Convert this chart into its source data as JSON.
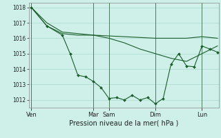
{
  "bg_color": "#cef0e8",
  "grid_color": "#aad8cc",
  "line_color": "#1a5c2a",
  "marker_color": "#1a5c2a",
  "xlabel": "Pression niveau de la mer( hPa )",
  "ylim": [
    1011.5,
    1018.3
  ],
  "yticks": [
    1012,
    1013,
    1014,
    1015,
    1016,
    1017,
    1018
  ],
  "day_labels": [
    "Ven",
    "Mar",
    "Sam",
    "Dim",
    "Lun"
  ],
  "day_positions": [
    0,
    96,
    120,
    192,
    264
  ],
  "xlim": [
    -4,
    290
  ],
  "series1_x": [
    0,
    24,
    48,
    72,
    96,
    120,
    144,
    168,
    192,
    216,
    240,
    264,
    288
  ],
  "series1_y": [
    1018.0,
    1016.8,
    1016.3,
    1016.2,
    1016.2,
    1016.15,
    1016.1,
    1016.05,
    1016.0,
    1016.0,
    1016.0,
    1016.1,
    1016.0
  ],
  "series2_x": [
    0,
    24,
    48,
    72,
    96,
    120,
    144,
    168,
    192,
    216,
    240,
    264,
    288
  ],
  "series2_y": [
    1018.0,
    1017.0,
    1016.4,
    1016.3,
    1016.2,
    1016.0,
    1015.7,
    1015.3,
    1015.0,
    1014.7,
    1014.5,
    1015.0,
    1015.5
  ],
  "series3_x": [
    0,
    24,
    48,
    60,
    72,
    84,
    96,
    108,
    120,
    132,
    144,
    156,
    168,
    180,
    192,
    204,
    216,
    228,
    240,
    252,
    264,
    276,
    288
  ],
  "series3_y": [
    1018.0,
    1016.8,
    1016.2,
    1015.0,
    1013.6,
    1013.5,
    1013.2,
    1012.8,
    1012.1,
    1012.15,
    1012.0,
    1012.3,
    1012.0,
    1012.15,
    1011.75,
    1012.1,
    1014.3,
    1015.0,
    1014.2,
    1014.15,
    1015.5,
    1015.3,
    1015.1
  ]
}
